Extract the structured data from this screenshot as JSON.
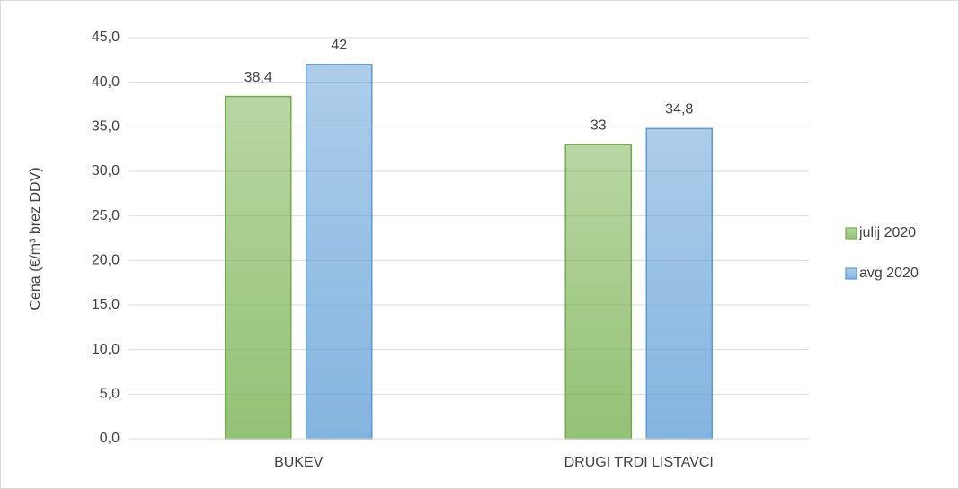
{
  "chart_data": {
    "type": "bar",
    "y_label": "Cena (€/m³ brez DDV)",
    "categories": [
      "BUKEV",
      "DRUGI TRDI LISTAVCI"
    ],
    "series": [
      {
        "name": "julij 2020",
        "color": "#70ad47",
        "values": [
          38.4,
          33
        ],
        "value_labels": [
          "38,4",
          "33"
        ]
      },
      {
        "name": "avg 2020",
        "color": "#5b9bd5",
        "values": [
          42,
          34.8
        ],
        "value_labels": [
          "42",
          "34,8"
        ]
      }
    ],
    "ylim": [
      0,
      45
    ],
    "yticks": [
      {
        "value": 0,
        "label": "0,0"
      },
      {
        "value": 5,
        "label": "5,0"
      },
      {
        "value": 10,
        "label": "10,0"
      },
      {
        "value": 15,
        "label": "15,0"
      },
      {
        "value": 20,
        "label": "20,0"
      },
      {
        "value": 25,
        "label": "25,0"
      },
      {
        "value": 30,
        "label": "30,0"
      },
      {
        "value": 35,
        "label": "35,0"
      },
      {
        "value": 40,
        "label": "40,0"
      },
      {
        "value": 45,
        "label": "45,0"
      }
    ],
    "grid": true,
    "legend": "right"
  }
}
